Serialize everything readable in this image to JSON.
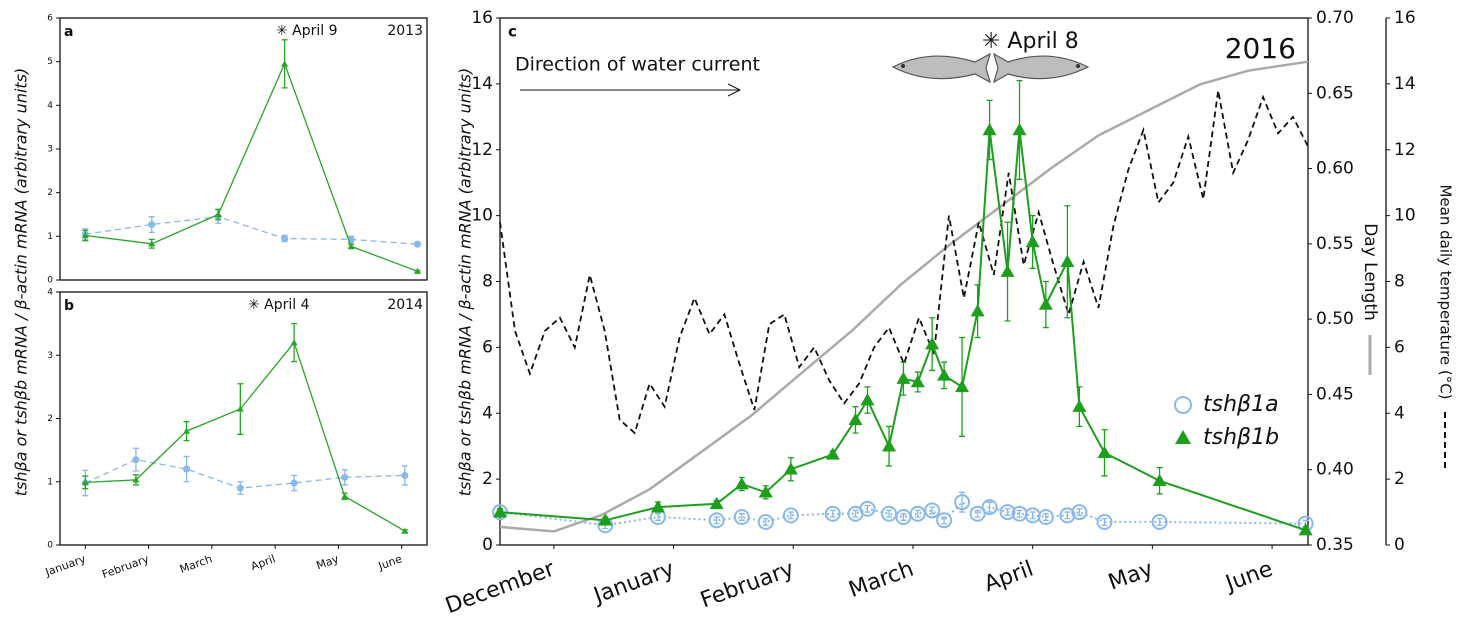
{
  "chart_data": [
    {
      "type": "line",
      "panel": "a",
      "annotation": "✳ April 9",
      "year": "2013",
      "ylabel": "tshβa or tshβb mRNA / β-actin mRNA (arbitrary units)",
      "xlim": [
        0.6,
        6.4
      ],
      "ylim": [
        0,
        6
      ],
      "yticks": [
        0,
        1,
        2,
        3,
        4,
        5,
        6
      ],
      "series": [
        {
          "color": "#8ab8ec",
          "dash": "dashed",
          "marker": "circle",
          "x": [
            1,
            2.05,
            3.1,
            4.15,
            5.2,
            6.25
          ],
          "values": [
            1.05,
            1.27,
            1.45,
            0.95,
            0.93,
            0.82
          ],
          "errors": [
            0.12,
            0.18,
            0.15,
            0.07,
            0.07,
            0.05
          ]
        },
        {
          "color": "#2aa52a",
          "dash": "solid",
          "marker": "triangle",
          "x": [
            1,
            2.05,
            3.1,
            4.15,
            5.2,
            6.25
          ],
          "values": [
            1.02,
            0.83,
            1.5,
            4.95,
            0.77,
            0.2
          ],
          "errors": [
            0.12,
            0.1,
            0.12,
            0.55,
            0.05,
            0.02
          ]
        }
      ]
    },
    {
      "type": "line",
      "panel": "b",
      "annotation": "✳ April 4",
      "year": "2014",
      "xlim": [
        0.6,
        6.4
      ],
      "ylim": [
        0,
        4
      ],
      "yticks": [
        0,
        1,
        2,
        3,
        4
      ],
      "xticks": [
        {
          "value": 1,
          "label": "January"
        },
        {
          "value": 2,
          "label": "February"
        },
        {
          "value": 3,
          "label": "March"
        },
        {
          "value": 4,
          "label": "April"
        },
        {
          "value": 5,
          "label": "May"
        },
        {
          "value": 6,
          "label": "June"
        }
      ],
      "series": [
        {
          "color": "#8ab8ec",
          "dash": "dashed",
          "marker": "circle",
          "x": [
            1,
            1.8,
            2.6,
            3.45,
            4.3,
            5.1,
            6.05
          ],
          "values": [
            0.98,
            1.35,
            1.2,
            0.9,
            0.98,
            1.07,
            1.1
          ],
          "errors": [
            0.2,
            0.18,
            0.2,
            0.1,
            0.12,
            0.12,
            0.15
          ]
        },
        {
          "color": "#2aa52a",
          "dash": "solid",
          "marker": "triangle",
          "x": [
            1,
            1.8,
            2.6,
            3.45,
            4.3,
            5.1,
            6.05
          ],
          "values": [
            0.99,
            1.03,
            1.8,
            2.15,
            3.2,
            0.77,
            0.22
          ],
          "errors": [
            0.1,
            0.08,
            0.15,
            0.4,
            0.3,
            0.05,
            0.02
          ]
        }
      ]
    },
    {
      "type": "line",
      "panel": "c",
      "annotation": "✳ April 8",
      "year": "2016",
      "arrow_label": "Direction of water current",
      "ylabel": "tshβa or tshβb mRNA / β-actin mRNA (arbitrary units)",
      "y2label": "Day Length",
      "y3label": "Mean daily temperature (°C)",
      "xlim": [
        -0.45,
        6.3
      ],
      "ylim": [
        0,
        16
      ],
      "yticks": [
        0,
        2,
        4,
        6,
        8,
        10,
        12,
        14,
        16
      ],
      "xticks": [
        {
          "value": 0,
          "label": "December"
        },
        {
          "value": 1,
          "label": "January"
        },
        {
          "value": 2,
          "label": "February"
        },
        {
          "value": 3,
          "label": "March"
        },
        {
          "value": 4,
          "label": "April"
        },
        {
          "value": 5,
          "label": "May"
        },
        {
          "value": 6,
          "label": "June"
        }
      ],
      "y2lim": [
        0.35,
        0.7
      ],
      "y2ticks": [
        0.35,
        {
          "value": 0.4,
          "label": "0.40"
        },
        0.45,
        {
          "value": 0.5,
          "label": "0.50"
        },
        0.55,
        {
          "value": 0.6,
          "label": "0.60"
        },
        0.65,
        {
          "value": 0.7,
          "label": "0.70"
        }
      ],
      "y3lim": [
        0,
        16
      ],
      "y3ticks": [
        0,
        2,
        4,
        6,
        8,
        10,
        12,
        14,
        16
      ],
      "legend": "lower right",
      "series": [
        {
          "color": "#aaaaaa",
          "dash": "solid",
          "axis": "y2",
          "x": [
            -0.45,
            0,
            0.4,
            0.8,
            1.2,
            1.65,
            2.05,
            2.5,
            2.9,
            3.3,
            3.75,
            4.15,
            4.55,
            5.0,
            5.4,
            5.8,
            6.3
          ],
          "values": [
            0.362,
            0.359,
            0.37,
            0.387,
            0.41,
            0.436,
            0.463,
            0.493,
            0.523,
            0.549,
            0.576,
            0.6,
            0.622,
            0.64,
            0.656,
            0.665,
            0.671
          ]
        },
        {
          "color": "#111111",
          "dash": "dashed",
          "axis": "y3",
          "x": [
            -0.45,
            -0.325,
            -0.2,
            -0.075,
            0.05,
            0.175,
            0.3,
            0.425,
            0.55,
            0.675,
            0.8,
            0.925,
            1.05,
            1.175,
            1.3,
            1.425,
            1.55,
            1.675,
            1.8,
            1.925,
            2.05,
            2.175,
            2.3,
            2.425,
            2.55,
            2.675,
            2.8,
            2.925,
            3.05,
            3.175,
            3.3,
            3.425,
            3.55,
            3.675,
            3.8,
            3.925,
            4.05,
            4.175,
            4.3,
            4.425,
            4.55,
            4.675,
            4.8,
            4.925,
            5.05,
            5.175,
            5.3,
            5.425,
            5.55,
            5.675,
            5.8,
            5.925,
            6.05,
            6.175,
            6.3
          ],
          "values": [
            9.8,
            6.5,
            5.2,
            6.5,
            6.9,
            6.0,
            8.2,
            6.5,
            3.8,
            3.4,
            4.9,
            4.2,
            6.3,
            7.5,
            6.4,
            7.0,
            5.5,
            4.1,
            6.7,
            7.0,
            5.4,
            6.0,
            5.0,
            4.3,
            4.9,
            6.0,
            6.6,
            5.5,
            6.9,
            5.8,
            10.0,
            7.5,
            9.8,
            8.2,
            11.3,
            8.5,
            10.1,
            8.5,
            7.0,
            8.6,
            7.2,
            9.7,
            11.4,
            12.6,
            10.4,
            11.0,
            12.4,
            10.5,
            13.8,
            11.3,
            12.3,
            13.6,
            12.5,
            13.0,
            12.1
          ]
        },
        {
          "name": "tshβ1a",
          "color": "#8ab8ec",
          "dash": "dotted",
          "marker": "circle-open",
          "x": [
            -0.45,
            0.43,
            0.87,
            1.36,
            1.57,
            1.77,
            1.98,
            2.33,
            2.52,
            2.62,
            2.8,
            2.92,
            3.04,
            3.16,
            3.26,
            3.41,
            3.54,
            3.64,
            3.79,
            3.89,
            4.0,
            4.11,
            4.29,
            4.39,
            4.6,
            5.06,
            6.28
          ],
          "values": [
            1.0,
            0.6,
            0.85,
            0.75,
            0.85,
            0.7,
            0.9,
            0.95,
            0.95,
            1.1,
            0.95,
            0.85,
            0.95,
            1.05,
            0.75,
            1.3,
            0.95,
            1.15,
            1.0,
            0.95,
            0.9,
            0.85,
            0.9,
            1.0,
            0.7,
            0.7,
            0.65
          ],
          "errors": [
            0.1,
            0.1,
            0.1,
            0.1,
            0.1,
            0.1,
            0.1,
            0.1,
            0.1,
            0.1,
            0.1,
            0.1,
            0.1,
            0.1,
            0.1,
            0.3,
            0.1,
            0.15,
            0.1,
            0.1,
            0.1,
            0.1,
            0.1,
            0.1,
            0.1,
            0.1,
            0.1
          ]
        },
        {
          "name": "tshβ1b",
          "color": "#1d9f1d",
          "dash": "solid",
          "marker": "triangle",
          "x": [
            -0.45,
            0.43,
            0.87,
            1.36,
            1.57,
            1.77,
            1.98,
            2.33,
            2.52,
            2.62,
            2.8,
            2.92,
            3.04,
            3.16,
            3.26,
            3.41,
            3.54,
            3.64,
            3.79,
            3.89,
            4.0,
            4.11,
            4.29,
            4.39,
            4.6,
            5.06,
            6.28
          ],
          "values": [
            1.0,
            0.75,
            1.15,
            1.25,
            1.85,
            1.6,
            2.3,
            2.75,
            3.8,
            4.4,
            3.0,
            5.05,
            4.95,
            6.1,
            5.15,
            4.8,
            7.1,
            12.6,
            8.3,
            12.6,
            9.2,
            7.3,
            8.6,
            4.2,
            2.8,
            1.95,
            0.45
          ],
          "errors": [
            0.1,
            0.1,
            0.15,
            0.1,
            0.2,
            0.2,
            0.35,
            0.1,
            0.4,
            0.4,
            0.6,
            0.5,
            0.3,
            0.8,
            0.4,
            1.5,
            0.8,
            0.9,
            1.5,
            1.5,
            0.8,
            0.7,
            1.7,
            0.6,
            0.7,
            0.4,
            0.1
          ]
        }
      ]
    }
  ]
}
